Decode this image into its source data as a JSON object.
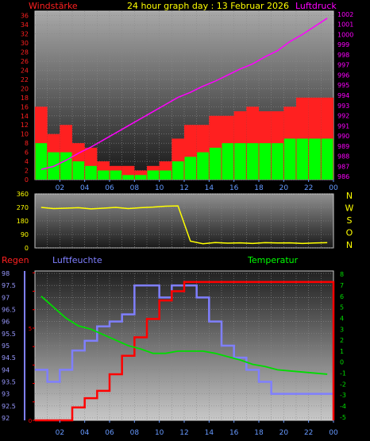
{
  "header": {
    "left_label": "Windstärke",
    "title": "24 hour graph day : 13 Februar 2026",
    "right_label": "Luftdruck"
  },
  "colors": {
    "wind_gust": "#ff2020",
    "wind_avg": "#00ff00",
    "pressure": "#ff00ff",
    "direction": "#ffff00",
    "rain": "#ff0000",
    "humidity": "#7f7fff",
    "temperature": "#00dd00",
    "grid": "#8a8a8a",
    "bottom_axis": "#6699ff"
  },
  "x_ticks": [
    "02",
    "04",
    "06",
    "08",
    "10",
    "12",
    "14",
    "16",
    "18",
    "20",
    "22",
    "00"
  ],
  "chart_data": [
    {
      "type": "bar",
      "panel": "wind",
      "xlabel": "",
      "ylabel": "Windstärke",
      "y_range": [
        0,
        37
      ],
      "y_ticks": [
        0,
        2,
        4,
        6,
        8,
        10,
        12,
        14,
        16,
        18,
        20,
        22,
        24,
        26,
        28,
        30,
        32,
        34,
        36
      ],
      "y2label": "Luftdruck",
      "y2_range": [
        985.7,
        1002.3
      ],
      "y2_ticks": [
        986,
        987,
        988,
        989,
        990,
        991,
        992,
        993,
        994,
        995,
        996,
        997,
        998,
        999,
        1000,
        1001,
        1002
      ],
      "grid": true,
      "series": [
        {
          "role": "gust",
          "values": [
            16,
            10,
            12,
            8,
            7,
            4,
            3,
            3,
            2,
            3,
            4,
            9,
            12,
            12,
            14,
            14,
            15,
            16,
            15,
            15,
            16,
            18,
            18,
            18
          ]
        },
        {
          "role": "average",
          "values": [
            8,
            6,
            6,
            4,
            3,
            2,
            2,
            1,
            1,
            2,
            2,
            4,
            5,
            6,
            7,
            8,
            8,
            8,
            8,
            8,
            9,
            9,
            9,
            9
          ]
        },
        {
          "role": "pressure",
          "axis": "y2",
          "values": [
            986.7,
            987.0,
            987.6,
            988.3,
            988.9,
            989.6,
            990.3,
            991.0,
            991.7,
            992.4,
            993.1,
            993.8,
            994.3,
            994.9,
            995.4,
            996.0,
            996.6,
            997.1,
            997.8,
            998.4,
            999.3,
            1000.0,
            1000.8,
            1001.6
          ]
        }
      ]
    },
    {
      "type": "line",
      "panel": "direction",
      "y_range": [
        0,
        360
      ],
      "y_ticks": [
        0,
        90,
        180,
        270,
        360
      ],
      "compass_labels": [
        "N",
        "W",
        "S",
        "O",
        "N"
      ],
      "series": [
        {
          "role": "direction",
          "values": [
            270,
            262,
            265,
            268,
            260,
            265,
            270,
            262,
            268,
            272,
            278,
            280,
            45,
            28,
            36,
            32,
            34,
            30,
            35,
            33,
            34,
            30,
            33,
            35
          ]
        }
      ]
    },
    {
      "type": "line",
      "panel": "rain-humidity-temperature",
      "legend": [
        "Regen",
        "Luftfeuchte",
        "Temperatur"
      ],
      "humidity_range": [
        91.9,
        98.1
      ],
      "humidity_ticks": [
        92,
        92.5,
        93,
        93.5,
        94,
        94.5,
        95,
        95.5,
        96,
        96.5,
        97,
        97.5,
        98
      ],
      "rain_range": [
        0,
        8.1
      ],
      "rain_ticks": [
        0,
        1,
        2,
        3,
        4,
        5,
        6,
        7,
        8
      ],
      "rain_ticks_text": [
        "0",
        "",
        "",
        "",
        "",
        "5",
        "",
        "",
        ""
      ],
      "temp_range": [
        -5.3,
        8.3
      ],
      "temp_ticks": [
        -5,
        -4,
        -3,
        -2,
        -1,
        0,
        1,
        2,
        3,
        4,
        5,
        6,
        7,
        8
      ],
      "series": [
        {
          "role": "humidity",
          "values": [
            94.0,
            93.5,
            94.0,
            94.8,
            95.2,
            95.8,
            96.0,
            96.3,
            97.5,
            97.5,
            97.0,
            97.5,
            97.5,
            97.0,
            96.0,
            95.0,
            94.5,
            94.0,
            93.5,
            93.0,
            93.0,
            93.0,
            93.0,
            93.0
          ]
        },
        {
          "role": "rain",
          "values": [
            0,
            0,
            0,
            0.7,
            1.2,
            1.6,
            2.5,
            3.5,
            4.5,
            5.5,
            6.5,
            7.0,
            7.5,
            7.5,
            7.5,
            7.5,
            7.5,
            7.5,
            7.5,
            7.5,
            7.5,
            7.5,
            7.5,
            7.5
          ]
        },
        {
          "role": "temperature",
          "values": [
            6.0,
            5.0,
            4.0,
            3.3,
            3.0,
            2.5,
            2.0,
            1.5,
            1.2,
            0.8,
            0.8,
            1.0,
            1.0,
            1.0,
            0.8,
            0.5,
            0.2,
            -0.2,
            -0.4,
            -0.7,
            -0.8,
            -0.9,
            -1.0,
            -1.1
          ]
        }
      ]
    }
  ],
  "bottom_axis": {
    "label_left_title": "Regen",
    "label_center": "Luftfeuchte",
    "label_right": "Temperatur"
  }
}
